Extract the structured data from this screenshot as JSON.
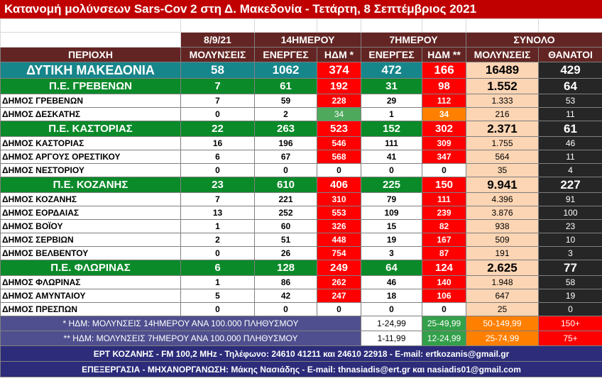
{
  "title": "Κατανομή μολύνσεων Sars-Cov 2 στη Δ. Μακεδονία - Τετάρτη, 8 Σεπτέμβριος 2021",
  "headers": {
    "group": [
      "8/9/21",
      "14ΗΜΕΡΟΥ",
      "7ΗΜΕΡΟΥ",
      "ΣΥΝΟΛΟ"
    ],
    "region": "ΠΕΡΙΟΧΗ",
    "cols": [
      "ΜΟΛΥΝΣΕΙΣ",
      "ΕΝΕΡΓΕΣ",
      "ΗΔΜ *",
      "ΕΝΕΡΓΕΣ",
      "ΗΔΜ **",
      "ΜΟΛΥΝΣΕΙΣ",
      "ΘΑΝΑΤΟΙ"
    ]
  },
  "rows": [
    {
      "type": "region",
      "name": "ΔΥΤΙΚΗ ΜΑΚΕΔΟΝΙΑ",
      "cases": "58",
      "active14": "1062",
      "hdm14": "374",
      "hdm14_color": "red",
      "active7": "472",
      "hdm7": "166",
      "hdm7_color": "red",
      "total": "16489",
      "deaths": "429"
    },
    {
      "type": "pe",
      "name": "Π.Ε. ΓΡΕΒΕΝΩΝ",
      "cases": "7",
      "active14": "61",
      "hdm14": "192",
      "hdm14_color": "red",
      "active7": "31",
      "hdm7": "98",
      "hdm7_color": "red",
      "total": "1.552",
      "deaths": "64"
    },
    {
      "type": "dm",
      "name": "ΔΗΜΟΣ ΓΡΕΒΕΝΩΝ",
      "cases": "7",
      "active14": "59",
      "hdm14": "228",
      "hdm14_color": "red",
      "active7": "29",
      "hdm7": "112",
      "hdm7_color": "red",
      "total": "1.333",
      "deaths": "53"
    },
    {
      "type": "dm",
      "name": "ΔΗΜΟΣ ΔΕΣΚΑΤΗΣ",
      "cases": "0",
      "active14": "2",
      "hdm14": "34",
      "hdm14_color": "green",
      "active7": "1",
      "hdm7": "34",
      "hdm7_color": "orange",
      "total": "216",
      "deaths": "11"
    },
    {
      "type": "pe",
      "name": "Π.Ε. ΚΑΣΤΟΡΙΑΣ",
      "cases": "22",
      "active14": "263",
      "hdm14": "523",
      "hdm14_color": "red",
      "active7": "152",
      "hdm7": "302",
      "hdm7_color": "red",
      "total": "2.371",
      "deaths": "61"
    },
    {
      "type": "dm",
      "name": "ΔΗΜΟΣ ΚΑΣΤΟΡΙΑΣ",
      "cases": "16",
      "active14": "196",
      "hdm14": "546",
      "hdm14_color": "red",
      "active7": "111",
      "hdm7": "309",
      "hdm7_color": "red",
      "total": "1.755",
      "deaths": "46"
    },
    {
      "type": "dm",
      "name": "ΔΗΜΟΣ ΑΡΓΟΥΣ ΟΡΕΣΤΙΚΟΥ",
      "cases": "6",
      "active14": "67",
      "hdm14": "568",
      "hdm14_color": "red",
      "active7": "41",
      "hdm7": "347",
      "hdm7_color": "red",
      "total": "564",
      "deaths": "11"
    },
    {
      "type": "dm",
      "name": "ΔΗΜΟΣ ΝΕΣΤΟΡΙΟΥ",
      "cases": "0",
      "active14": "0",
      "hdm14": "0",
      "hdm14_color": "white",
      "active7": "0",
      "hdm7": "0",
      "hdm7_color": "white",
      "total": "35",
      "deaths": "4"
    },
    {
      "type": "pe",
      "name": "Π.Ε. ΚΟΖΑΝΗΣ",
      "cases": "23",
      "active14": "610",
      "hdm14": "406",
      "hdm14_color": "red",
      "active7": "225",
      "hdm7": "150",
      "hdm7_color": "red",
      "total": "9.941",
      "deaths": "227"
    },
    {
      "type": "dm",
      "name": "ΔΗΜΟΣ ΚΟΖΑΝΗΣ",
      "cases": "7",
      "active14": "221",
      "hdm14": "310",
      "hdm14_color": "red",
      "active7": "79",
      "hdm7": "111",
      "hdm7_color": "red",
      "total": "4.396",
      "deaths": "91"
    },
    {
      "type": "dm",
      "name": "ΔΗΜΟΣ ΕΟΡΔΑΙΑΣ",
      "cases": "13",
      "active14": "252",
      "hdm14": "553",
      "hdm14_color": "red",
      "active7": "109",
      "hdm7": "239",
      "hdm7_color": "red",
      "total": "3.876",
      "deaths": "100"
    },
    {
      "type": "dm",
      "name": "ΔΗΜΟΣ ΒΟΪΟΥ",
      "cases": "1",
      "active14": "60",
      "hdm14": "326",
      "hdm14_color": "red",
      "active7": "15",
      "hdm7": "82",
      "hdm7_color": "red",
      "total": "938",
      "deaths": "23"
    },
    {
      "type": "dm",
      "name": "ΔΗΜΟΣ ΣΕΡΒΙΩΝ",
      "cases": "2",
      "active14": "51",
      "hdm14": "448",
      "hdm14_color": "red",
      "active7": "19",
      "hdm7": "167",
      "hdm7_color": "red",
      "total": "509",
      "deaths": "10"
    },
    {
      "type": "dm",
      "name": "ΔΗΜΟΣ ΒΕΛΒΕΝΤΟΥ",
      "cases": "0",
      "active14": "26",
      "hdm14": "754",
      "hdm14_color": "red",
      "active7": "3",
      "hdm7": "87",
      "hdm7_color": "red",
      "total": "191",
      "deaths": "3"
    },
    {
      "type": "pe",
      "name": "Π.Ε. ΦΛΩΡΙΝΑΣ",
      "cases": "6",
      "active14": "128",
      "hdm14": "249",
      "hdm14_color": "red",
      "active7": "64",
      "hdm7": "124",
      "hdm7_color": "red",
      "total": "2.625",
      "deaths": "77"
    },
    {
      "type": "dm",
      "name": "ΔΗΜΟΣ ΦΛΩΡΙΝΑΣ",
      "cases": "1",
      "active14": "86",
      "hdm14": "262",
      "hdm14_color": "red",
      "active7": "46",
      "hdm7": "140",
      "hdm7_color": "red",
      "total": "1.948",
      "deaths": "58"
    },
    {
      "type": "dm",
      "name": "ΔΗΜΟΣ ΑΜΥΝΤΑΙΟΥ",
      "cases": "5",
      "active14": "42",
      "hdm14": "247",
      "hdm14_color": "red",
      "active7": "18",
      "hdm7": "106",
      "hdm7_color": "red",
      "total": "647",
      "deaths": "19"
    },
    {
      "type": "dm",
      "name": "ΔΗΜΟΣ ΠΡΕΣΠΩΝ",
      "cases": "0",
      "active14": "0",
      "hdm14": "0",
      "hdm14_color": "white",
      "active7": "0",
      "hdm7": "0",
      "hdm7_color": "white",
      "total": "25",
      "deaths": "0"
    }
  ],
  "legend": [
    {
      "text": "* ΗΔΜ: ΜΟΛΥΝΣΕΙΣ 14ΗΜΕΡΟΥ ΑΝΑ 100.000 ΠΛΗΘΥΣΜΟΥ",
      "ranges": [
        "1-24,99",
        "25-49,99",
        "50-149,99",
        "150+"
      ]
    },
    {
      "text": "** ΗΔΜ: ΜΟΛΥΝΣΕΙΣ 7ΗΜΕΡΟΥ ΑΝΑ 100.000 ΠΛΗΘΥΣΜΟΥ",
      "ranges": [
        "1-11,99",
        "12-24,99",
        "25-74,99",
        "75+"
      ]
    }
  ],
  "footer": [
    "ΕΡΤ ΚΟΖΑΝΗΣ - FM 100,2 MHz - Τηλέφωνο:  24610 41211 και 24610 22918 - E-mail: ertkozanis@gmail.gr",
    "ΕΠΕΞΕΡΓΑΣΙΑ  -  ΜΗΧΑΝΟΡΓΑΝΩΣΗ: Μάκης Νασιάδης   -   E-mail: thnasiadis@ert.gr και nasiadis01@gmail.com"
  ],
  "colors": {
    "region": "#17868b",
    "pe": "#0b8a2a",
    "red": "#ff0000",
    "green": "#4ea95c",
    "orange": "#ff7f00",
    "total_bg": "#fcd5b4",
    "deaths_bg": "#262626",
    "header_bg": "#632523",
    "title_bg": "#c00000"
  }
}
